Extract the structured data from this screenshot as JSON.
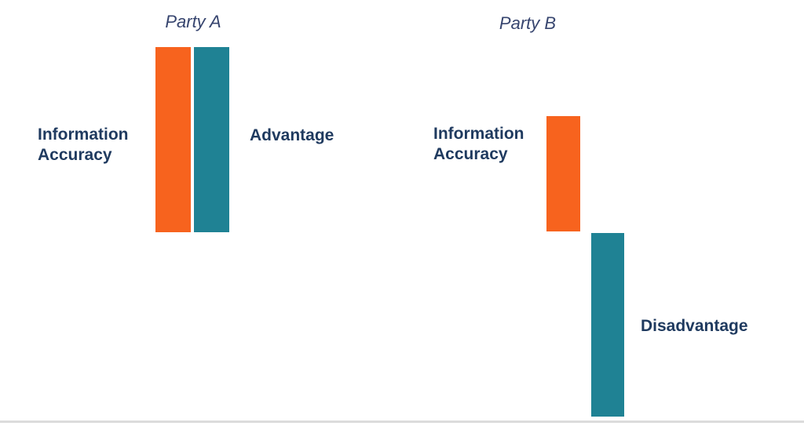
{
  "colors": {
    "bar_orange": "#F7631E",
    "bar_teal": "#1F8294",
    "label_navy": "#1F3A5F",
    "title_navy": "#37456F",
    "baseline_gray": "#DCDCDC",
    "bg": "#FFFFFF"
  },
  "diagram": {
    "party_a": {
      "title": "Party A",
      "info_label": "Information\nAccuracy",
      "outcome_label": "Advantage",
      "bars": [
        {
          "name": "information-accuracy",
          "color": "#F7631E",
          "size": "tall",
          "direction": "up"
        },
        {
          "name": "advantage",
          "color": "#1F8294",
          "size": "tall",
          "direction": "up"
        }
      ]
    },
    "party_b": {
      "title": "Party B",
      "info_label": "Information\nAccuracy",
      "outcome_label": "Disadvantage",
      "bars": [
        {
          "name": "information-accuracy",
          "color": "#F7631E",
          "size": "short",
          "direction": "up"
        },
        {
          "name": "disadvantage",
          "color": "#1F8294",
          "size": "tall",
          "direction": "down-below-baseline"
        }
      ]
    }
  }
}
